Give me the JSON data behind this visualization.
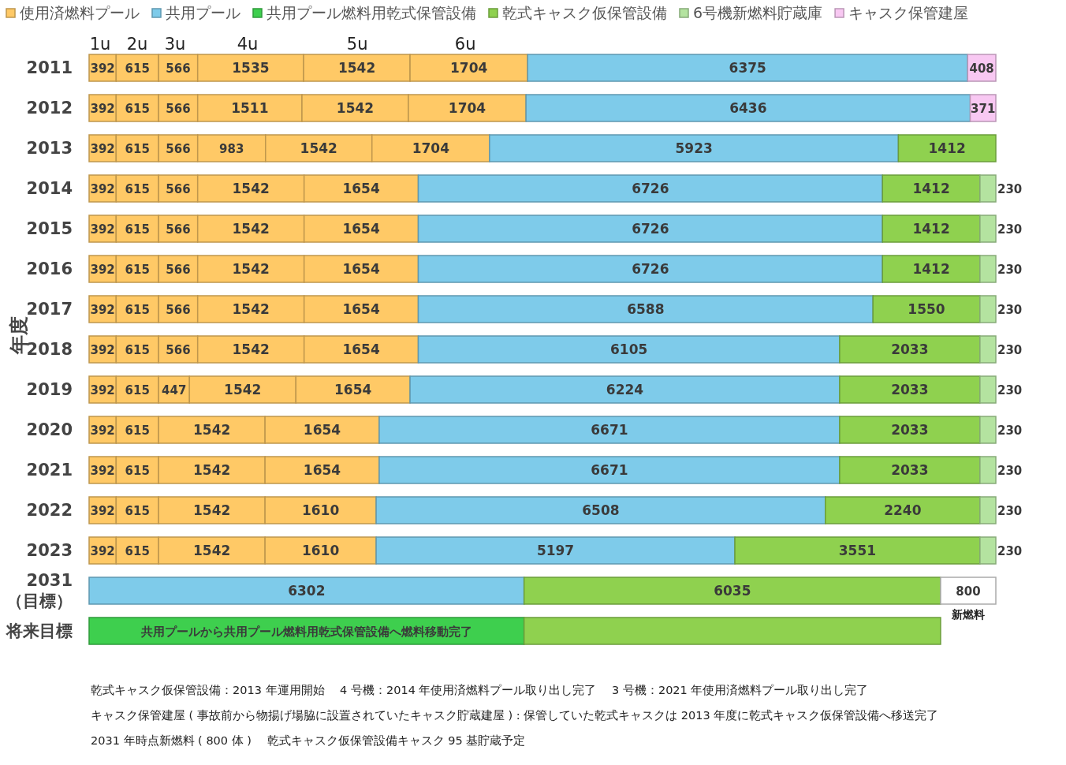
{
  "chart_data": {
    "type": "bar",
    "orientation": "horizontal",
    "stacked": true,
    "ylabel": "年度",
    "legend": "top",
    "categories": [
      "2011",
      "2012",
      "2013",
      "2014",
      "2015",
      "2016",
      "2017",
      "2018",
      "2019",
      "2020",
      "2021",
      "2022",
      "2023",
      "2031\n（目標）",
      "将来目標"
    ],
    "series": [
      {
        "name": "使用済燃料プール",
        "color": "#ffc966",
        "values": [
          392,
          392,
          392,
          392,
          392,
          392,
          392,
          392,
          392,
          392,
          392,
          392,
          392,
          null,
          null
        ],
        "value_labels": [
          "392",
          "392",
          "392",
          "392",
          "392",
          "392",
          "392",
          "392",
          "392",
          "392",
          "392",
          "392",
          "392",
          null,
          null
        ]
      },
      {
        "color": "#ffc966",
        "values": [
          615,
          615,
          615,
          615,
          615,
          615,
          615,
          615,
          615,
          615,
          615,
          615,
          615,
          null,
          null
        ],
        "value_labels": [
          "615",
          "615",
          "615",
          "615",
          "615",
          "615",
          "615",
          "615",
          "615",
          "615",
          "615",
          "615",
          "615",
          null,
          null
        ]
      },
      {
        "color": "#ffc966",
        "values": [
          566,
          566,
          566,
          566,
          566,
          566,
          566,
          566,
          447,
          null,
          null,
          null,
          null,
          null,
          null
        ],
        "value_labels": [
          "566",
          "566",
          "566",
          "566",
          "566",
          "566",
          "566",
          "566",
          "447",
          null,
          null,
          null,
          null,
          null,
          null
        ]
      },
      {
        "color": "#ffc966",
        "values": [
          1535,
          1511,
          983,
          null,
          null,
          null,
          null,
          null,
          null,
          null,
          null,
          null,
          null,
          null,
          null
        ],
        "value_labels": [
          "1535",
          "1511",
          "983",
          null,
          null,
          null,
          null,
          null,
          null,
          null,
          null,
          null,
          null,
          null,
          null
        ]
      },
      {
        "color": "#ffc966",
        "values": [
          1542,
          1542,
          1542,
          1542,
          1542,
          1542,
          1542,
          1542,
          1542,
          1542,
          1542,
          1542,
          1542,
          null,
          null
        ],
        "value_labels": [
          "1542",
          "1542",
          "1542",
          "1542",
          "1542",
          "1542",
          "1542",
          "1542",
          "1542",
          "1542",
          "1542",
          "1542",
          "1542",
          null,
          null
        ]
      },
      {
        "color": "#ffc966",
        "values": [
          1704,
          1704,
          1704,
          1654,
          1654,
          1654,
          1654,
          1654,
          1654,
          1654,
          1654,
          1610,
          1610,
          null,
          null
        ],
        "value_labels": [
          "1704",
          "1704",
          "1704",
          "1654",
          "1654",
          "1654",
          "1654",
          "1654",
          "1654",
          "1654",
          "1654",
          "1610",
          "1610",
          null,
          null
        ]
      },
      {
        "name": "共用プール",
        "color": "#7ecbea",
        "values": [
          6375,
          6436,
          5923,
          6726,
          6726,
          6726,
          6588,
          6105,
          6224,
          6671,
          6671,
          6508,
          5197,
          6302,
          null
        ],
        "value_labels": [
          "6375",
          "6436",
          "5923",
          "6726",
          "6726",
          "6726",
          "6588",
          "6105",
          "6224",
          "6671",
          "6671",
          "6508",
          "5197",
          "6302",
          null
        ]
      },
      {
        "name": "共用プール燃料用乾式保管設備",
        "color": "#3ecf4e",
        "values": [
          null,
          null,
          null,
          null,
          null,
          null,
          null,
          null,
          null,
          null,
          null,
          null,
          null,
          null,
          6302
        ],
        "value_labels": [
          null,
          null,
          null,
          null,
          null,
          null,
          null,
          null,
          null,
          null,
          null,
          null,
          null,
          null,
          "共用プールから共用プール燃料用乾式保管設備へ燃料移動完了"
        ]
      },
      {
        "name": "乾式キャスク仮保管設備",
        "color": "#8fd14f",
        "values": [
          null,
          null,
          1412,
          1412,
          1412,
          1412,
          1550,
          2033,
          2033,
          2033,
          2033,
          2240,
          3551,
          6035,
          6035
        ],
        "value_labels": [
          null,
          null,
          "1412",
          "1412",
          "1412",
          "1412",
          "1550",
          "2033",
          "2033",
          "2033",
          "2033",
          "2240",
          "3551",
          "6035",
          null
        ]
      },
      {
        "name": "6号機新燃料貯蔵庫",
        "color": "#b4e3a0",
        "values": [
          null,
          null,
          null,
          230,
          230,
          230,
          230,
          230,
          230,
          230,
          230,
          230,
          230,
          null,
          null
        ],
        "value_labels": [
          null,
          null,
          null,
          "230",
          "230",
          "230",
          "230",
          "230",
          "230",
          "230",
          "230",
          "230",
          "230",
          null,
          null
        ]
      },
      {
        "name": "キャスク保管建屋",
        "color": "#f8c8f2",
        "values": [
          408,
          371,
          null,
          null,
          null,
          null,
          null,
          null,
          null,
          null,
          null,
          null,
          null,
          null,
          null
        ],
        "value_labels": [
          "408",
          "371",
          null,
          null,
          null,
          null,
          null,
          null,
          null,
          null,
          null,
          null,
          null,
          null,
          null
        ]
      },
      {
        "color": "#ffffff",
        "values": [
          null,
          null,
          null,
          null,
          null,
          null,
          null,
          null,
          null,
          null,
          null,
          null,
          null,
          800,
          null
        ],
        "value_labels": [
          null,
          null,
          null,
          null,
          null,
          null,
          null,
          null,
          null,
          null,
          null,
          null,
          null,
          "800\n新燃料",
          null
        ]
      }
    ],
    "annotations": [
      {
        "text": "1u",
        "x": 160,
        "y": "2011"
      },
      {
        "text": "2u",
        "x": 697,
        "y": "2011"
      },
      {
        "text": "3u",
        "x": 1246,
        "y": "2011"
      },
      {
        "text": "4u",
        "x": 2297,
        "y": "2011"
      },
      {
        "text": "5u",
        "x": 3886,
        "y": "2011"
      },
      {
        "text": "6u",
        "x": 5451,
        "y": "2011"
      },
      "乾式キャスク仮保管設備：2013 年運用開始　 4 号機：2014 年使用済燃料プール取り出し完了　 3 号機：2021 年使用済燃料プール取り出し完了",
      "キャスク保管建屋 ( 事故前から物揚げ場脇に設置されていたキャスク貯蔵建屋 ) : 保管していた乾式キャスクは 2013 年度に乾式キャスク仮保管設備へ移送完了",
      "2031 年時点新燃料 ( 800 体 )　 乾式キャスク仮保管設備キャスク 95 基貯蔵予定"
    ]
  }
}
